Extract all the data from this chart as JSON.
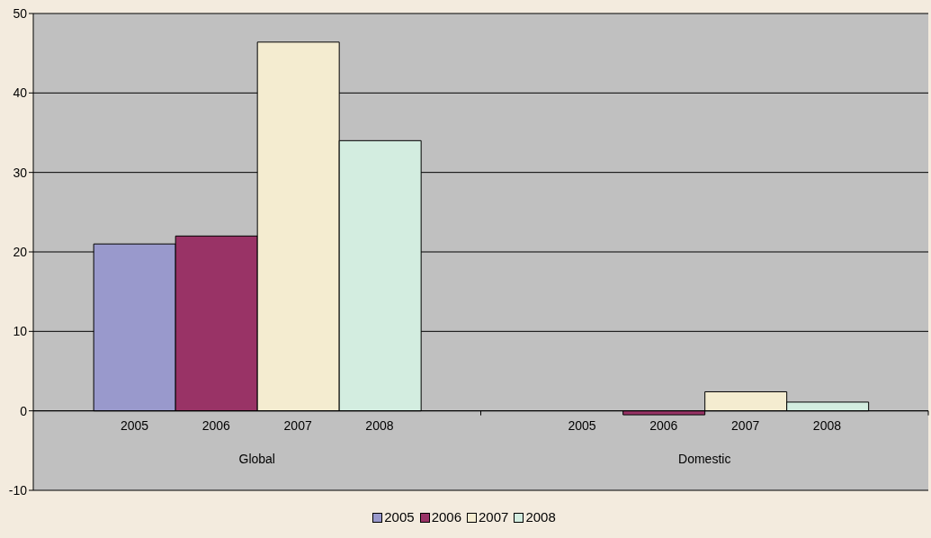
{
  "chart_data": {
    "type": "bar",
    "categories": [
      "Global",
      "Domestic"
    ],
    "series": [
      {
        "name": "2005",
        "color": "#9999cc",
        "values": [
          21.0,
          0
        ]
      },
      {
        "name": "2006",
        "color": "#993366",
        "values": [
          22.0,
          -0.5
        ]
      },
      {
        "name": "2007",
        "color": "#f4ecd0",
        "values": [
          46.4,
          2.4
        ]
      },
      {
        "name": "2008",
        "color": "#d3ede0",
        "values": [
          34.0,
          1.1
        ]
      }
    ],
    "ylim": [
      -10,
      50
    ],
    "yticks": [
      -10,
      0,
      10,
      20,
      30,
      40,
      50
    ],
    "grid": "y",
    "legend": "bottom"
  }
}
